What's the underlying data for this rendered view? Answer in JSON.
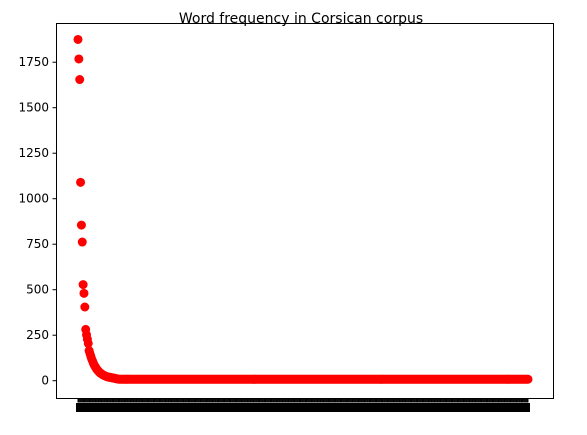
{
  "chart_data": {
    "type": "scatter",
    "title": "Word frequency in Corsican corpus",
    "xlabel": "",
    "ylabel": "",
    "ylim": [
      -95,
      1960
    ],
    "y_ticks": [
      0,
      250,
      500,
      750,
      1000,
      1250,
      1500,
      1750
    ],
    "x_tick_labels_visible": false,
    "grid": false,
    "legend": "none",
    "marker_color": "#ff0000",
    "series": [
      {
        "values": [
          1875,
          1768,
          1655,
          1090,
          855,
          762,
          528,
          480,
          405,
          282,
          252,
          228,
          205,
          165,
          150,
          135,
          120,
          108,
          96,
          86,
          78,
          70,
          63,
          57,
          52,
          47,
          43,
          39,
          36,
          33,
          30,
          28,
          26,
          24,
          22,
          21,
          20,
          19,
          18,
          17,
          16,
          15,
          14,
          13,
          12,
          11,
          10,
          9
        ],
        "tail_value": 8,
        "tail_count": 480
      }
    ]
  }
}
